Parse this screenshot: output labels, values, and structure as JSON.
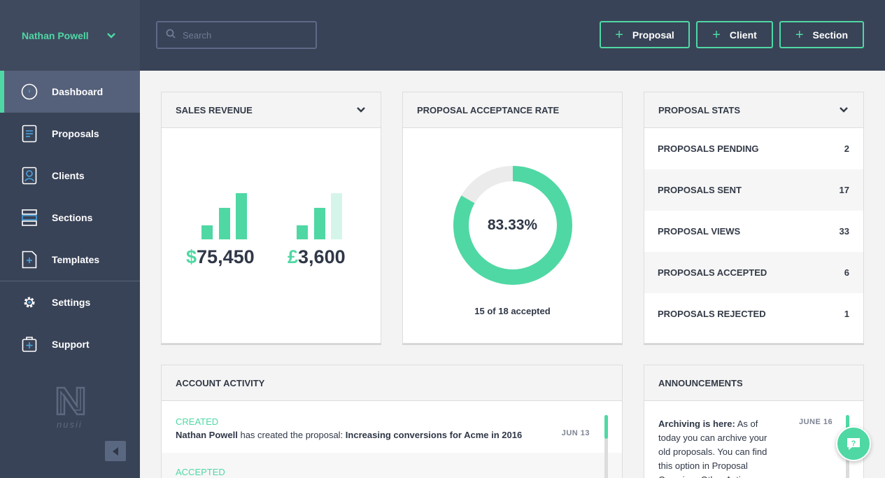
{
  "user": {
    "name": "Nathan Powell"
  },
  "sidebar": {
    "items": [
      {
        "label": "Dashboard",
        "icon": "dashboard-icon"
      },
      {
        "label": "Proposals",
        "icon": "document-icon"
      },
      {
        "label": "Clients",
        "icon": "client-icon"
      },
      {
        "label": "Sections",
        "icon": "sections-icon"
      },
      {
        "label": "Templates",
        "icon": "template-icon"
      },
      {
        "label": "Settings",
        "icon": "gear-icon"
      },
      {
        "label": "Support",
        "icon": "support-icon"
      }
    ],
    "logo_text": "nusii"
  },
  "topbar": {
    "search_placeholder": "Search",
    "buttons": [
      "Proposal",
      "Client",
      "Section"
    ]
  },
  "sales_revenue": {
    "title": "SALES REVENUE",
    "usd": {
      "symbol": "$",
      "amount": "75,450"
    },
    "gbp": {
      "symbol": "£",
      "amount": "3,600"
    }
  },
  "acceptance": {
    "title": "PROPOSAL ACCEPTANCE RATE",
    "rate_label": "83.33%",
    "rate_fraction": 0.8333,
    "subtitle": "15 of 18 accepted"
  },
  "stats": {
    "title": "PROPOSAL STATS",
    "rows": [
      {
        "label": "PROPOSALS PENDING",
        "value": "2"
      },
      {
        "label": "PROPOSALS SENT",
        "value": "17"
      },
      {
        "label": "PROPOSAL VIEWS",
        "value": "33"
      },
      {
        "label": "PROPOSALS ACCEPTED",
        "value": "6"
      },
      {
        "label": "PROPOSALS REJECTED",
        "value": "1"
      }
    ]
  },
  "activity": {
    "title": "ACCOUNT ACTIVITY",
    "entries": [
      {
        "type": "CREATED",
        "actor": "Nathan Powell",
        "action": " has created the proposal: ",
        "target": "Increasing conversions for Acme in 2016",
        "date": "JUN 13"
      },
      {
        "type": "ACCEPTED"
      }
    ]
  },
  "announcements": {
    "title": "ANNOUNCEMENTS",
    "items": [
      {
        "heading": "Archiving is here:",
        "body": " As of today you can archive your old proposals. You can find this option in Proposal Overview, Other Actions.",
        "date": "JUNE 16"
      }
    ]
  },
  "colors": {
    "accent": "#4fd8a4",
    "sidebar": "#394357",
    "text": "#2f3747"
  }
}
